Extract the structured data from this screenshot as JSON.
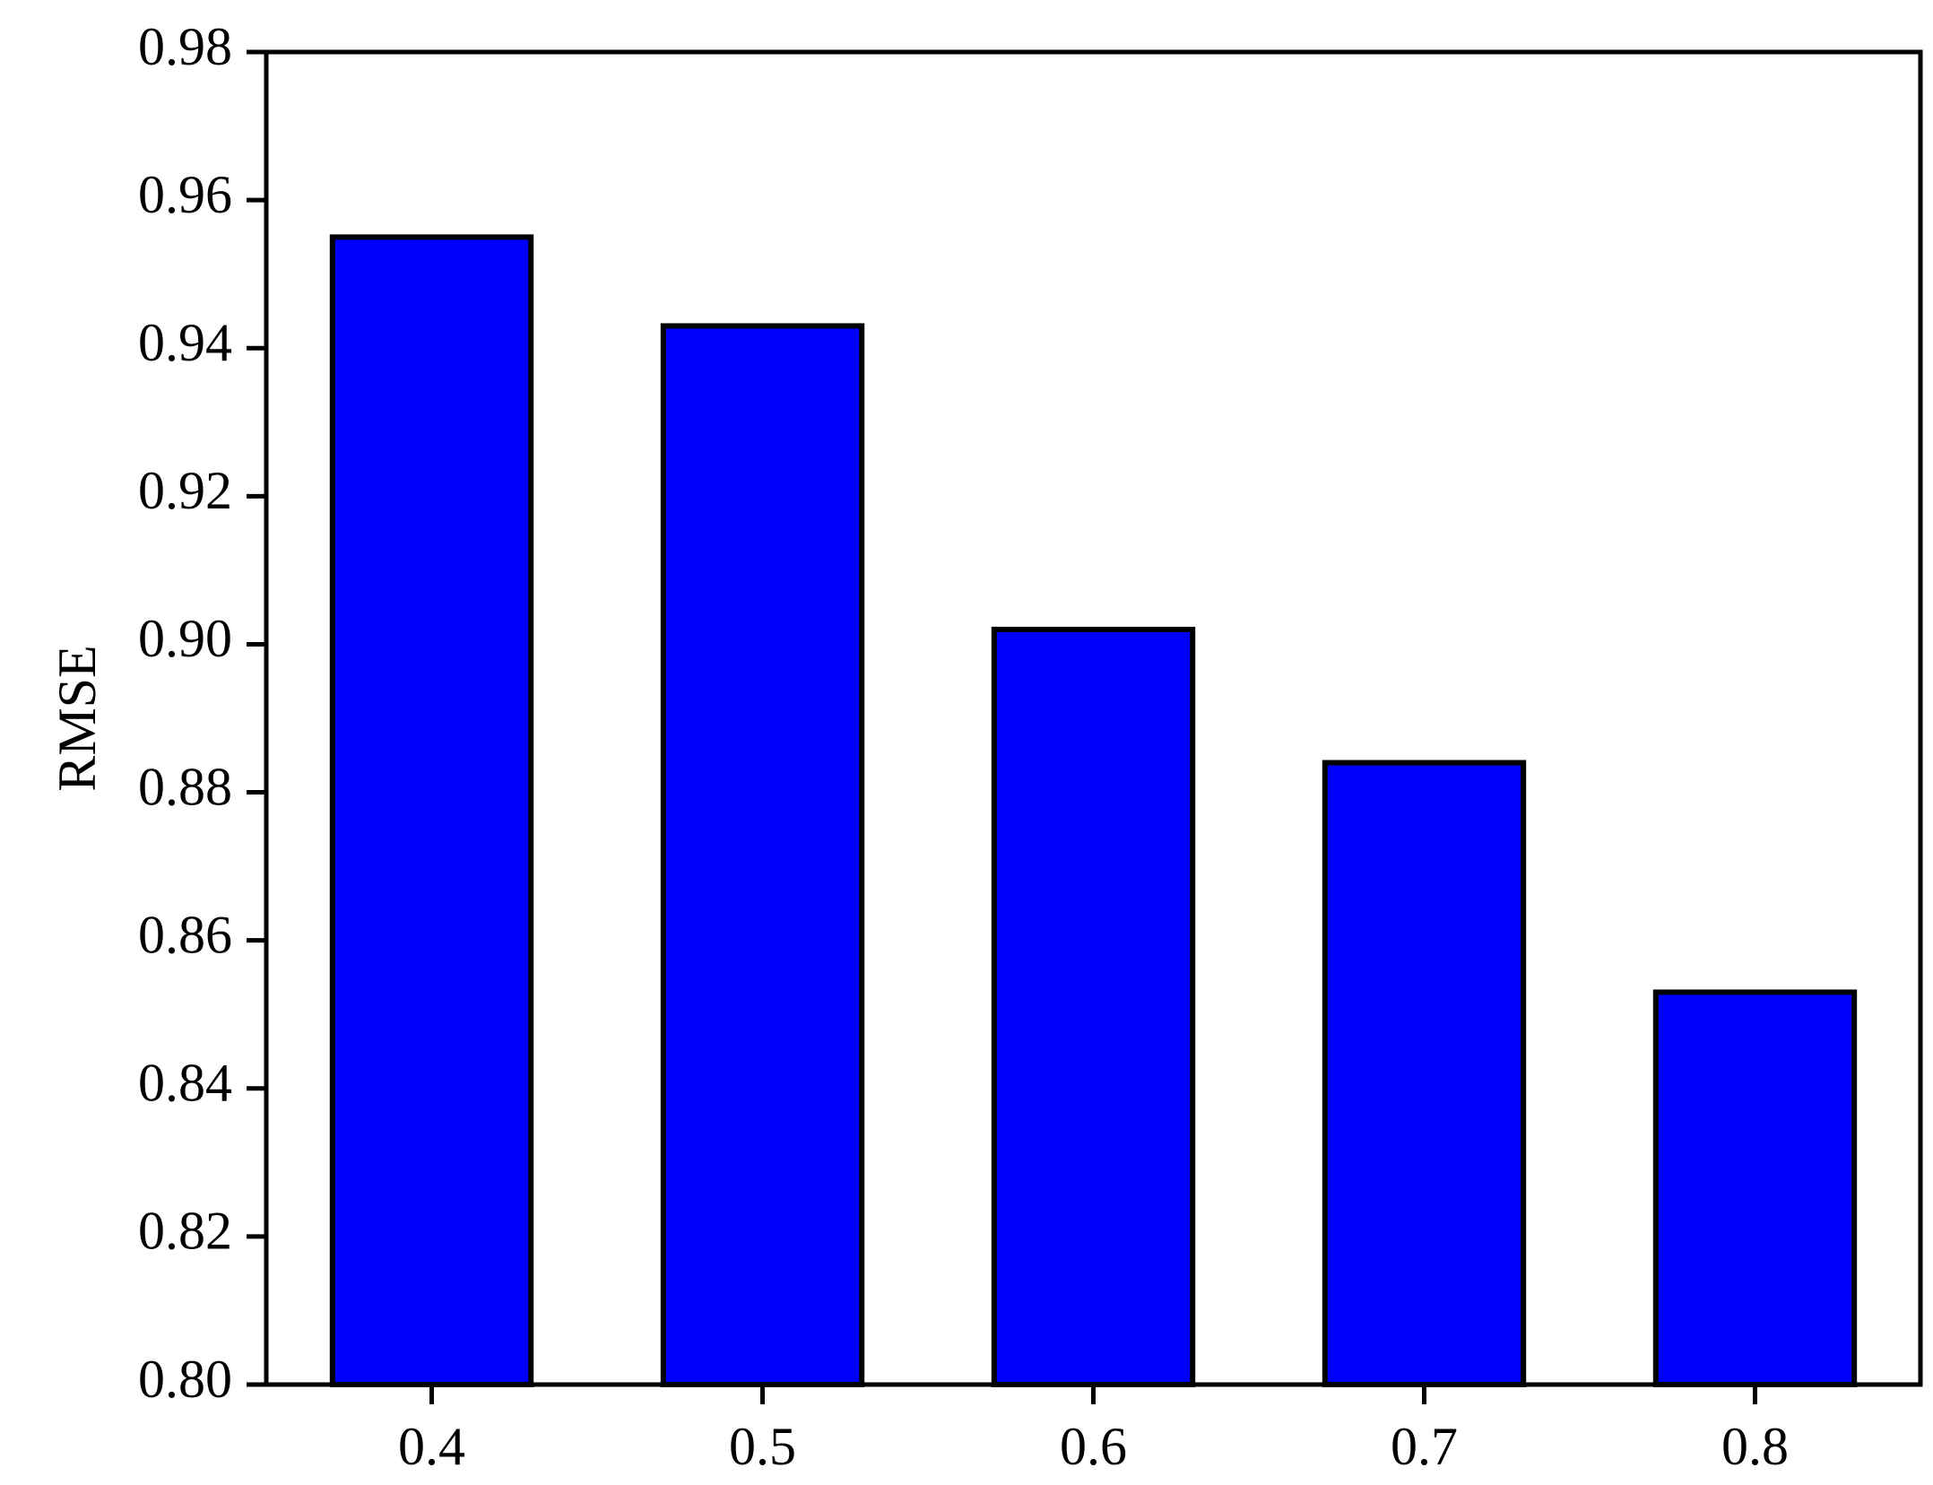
{
  "chart_data": {
    "type": "bar",
    "y_label": "RMSE",
    "categories": [
      "0.4",
      "0.5",
      "0.6",
      "0.7",
      "0.8"
    ],
    "values": [
      0.955,
      0.943,
      0.902,
      0.884,
      0.853
    ],
    "color": "#0000ff",
    "ylim": [
      0.8,
      0.98
    ],
    "yticks": [
      {
        "value": 0.8,
        "label": "0.80"
      },
      0.82,
      0.84,
      0.86,
      0.88,
      {
        "value": 0.9,
        "label": "0.90"
      },
      0.92,
      0.94,
      0.96,
      0.98
    ],
    "grid": false
  }
}
